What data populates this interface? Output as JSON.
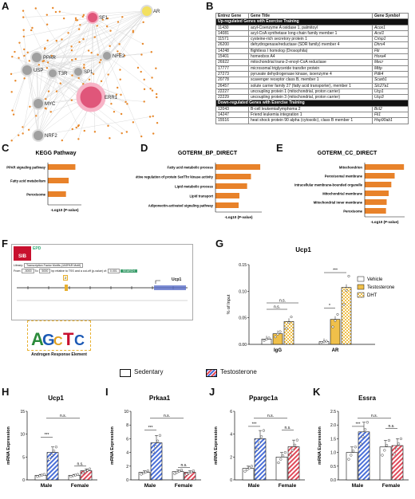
{
  "panels": {
    "A": "A",
    "B": "B",
    "C": "C",
    "D": "D",
    "E": "E",
    "F": "F",
    "G": "G",
    "H": "H",
    "I": "I",
    "J": "J",
    "K": "K"
  },
  "network": {
    "nodes": [
      {
        "label": "SF1",
        "color": "#e0567a"
      },
      {
        "label": "AR",
        "color": "#f3e060"
      },
      {
        "label": "PPAR",
        "color": "#a0a0a0"
      },
      {
        "label": "NFE2",
        "color": "#a0a0a0"
      },
      {
        "label": "USP",
        "color": "#a0a0a0"
      },
      {
        "label": "T3R",
        "color": "#a0a0a0"
      },
      {
        "label": "SP1",
        "color": "#a0a0a0"
      },
      {
        "label": "MYC",
        "color": "#a0a0a0"
      },
      {
        "label": "ERR1",
        "color": "#e0567a"
      },
      {
        "label": "NRF2",
        "color": "#a0a0a0"
      }
    ]
  },
  "gene_table": {
    "headers": [
      "Entrez Gene",
      "Gene Title",
      "Gene Symbol"
    ],
    "up_title": "Up-regulated Genes with Exercise Training",
    "up_rows": [
      [
        "11430",
        "acyl-Coenzyme A oxidase 1, palmitoyl",
        "Acox1"
      ],
      [
        "14081",
        "acyl-CoA synthetase long-chain family member 1",
        "Acsl1"
      ],
      [
        "11571",
        "cysteine-rich secretory protein 1",
        "Crisp1"
      ],
      [
        "26200",
        "dehydrogenase/reductase (SDR family) member 4",
        "Dhrs4"
      ],
      [
        "14248",
        "flightless I homolog (Drosophila)",
        "Flii"
      ],
      [
        "15401",
        "homeobox A4",
        "Hoxa4"
      ],
      [
        "26922",
        "mitochondrial trans-2-enoyl-CoA reductase",
        "Mecr"
      ],
      [
        "17777",
        "microsomal triglyceride transfer protein",
        "Mttp"
      ],
      [
        "27273",
        "pyruvate dehydrogenase kinase, isoenzyme 4",
        "Pdk4"
      ],
      [
        "20778",
        "scavenger receptor class B, member 1",
        "Scarb1"
      ],
      [
        "26457",
        "solute carrier family 27 (fatty acid transporter), member 1",
        "Slc27a1"
      ],
      [
        "22227",
        "uncoupling protein 1 (mitochondrial, proton carrier)",
        "Ucp1"
      ],
      [
        "22229",
        "uncoupling protein 3 (mitochondrial, proton carrier)",
        "Ucp3"
      ]
    ],
    "down_title": "Down-regulated Genes with Exercise Training",
    "down_rows": [
      [
        "12043",
        "B-cell leukemia/lymphoma 2",
        "Bcl2"
      ],
      [
        "14247",
        "Friend leukemia integration 1",
        "Fli1"
      ],
      [
        "15516",
        "heat shock protein 90 alpha (cytosolic), class B member 1",
        "Hsp90ab1"
      ]
    ]
  },
  "chart_data": [
    {
      "panel": "C",
      "type": "bar",
      "orientation": "horizontal",
      "title": "KEGG Pathway",
      "categories": [
        "PPAR signaling pathway",
        "Fatty acid metabolism",
        "Peroxisome"
      ],
      "values": [
        4.1,
        3.1,
        2.7
      ],
      "xlabel": "-Log10 (P-value)",
      "xlim": [
        0,
        5
      ],
      "color": "#e8822a"
    },
    {
      "panel": "D",
      "type": "bar",
      "orientation": "horizontal",
      "title": "GOTERM_BP_DIRECT",
      "categories": [
        "Fatty acid metabolic process",
        "Positive regulation of protein Ser/Thr kinase activity",
        "Lipid metabolic process",
        "Lipid transport",
        "Adiponectin-activated signaling pathway"
      ],
      "values": [
        5.8,
        4.6,
        4.1,
        3.1,
        3.0
      ],
      "xlabel": "-Log10 (P-value)",
      "xlim": [
        0,
        6
      ],
      "color": "#e8822a"
    },
    {
      "panel": "E",
      "type": "bar",
      "orientation": "horizontal",
      "title": "GOTERM_CC_DIRECT",
      "categories": [
        "Mitochondrion",
        "Peroxisomal membrane",
        "Intracellular membrane-bounded organelle",
        "Mitochondrial membrane",
        "Mitochondrial inner membrane",
        "Peroxisome"
      ],
      "values": [
        5.9,
        4.5,
        4.0,
        3.6,
        3.3,
        3.2
      ],
      "xlabel": "-Log10 (P-value)",
      "xlim": [
        0,
        6
      ],
      "color": "#e8822a"
    },
    {
      "panel": "G",
      "type": "bar",
      "title": "Ucp1",
      "ylabel": "% of Input",
      "ylim": [
        0,
        0.15
      ],
      "yticks": [
        "0.00",
        "0.05",
        "0.10",
        "0.15"
      ],
      "categories": [
        "IgG",
        "AR"
      ],
      "series": [
        {
          "name": "Vehicle",
          "values": [
            0.01,
            0.005
          ],
          "color": "#ffffff"
        },
        {
          "name": "Testosterone",
          "values": [
            0.02,
            0.047
          ],
          "color": "#f0c04a"
        },
        {
          "name": "DHT",
          "values": [
            0.043,
            0.107
          ],
          "color": "#f0c04a"
        }
      ],
      "annotations": [
        "n.s.",
        "n.s.",
        "*",
        "***"
      ]
    },
    {
      "panel": "H",
      "type": "bar",
      "title": "Ucp1",
      "ylabel": "mRNA Expression",
      "ylim": [
        0,
        15
      ],
      "yticks": [
        "0",
        "5",
        "10",
        "15"
      ],
      "categories": [
        "Male",
        "Female"
      ],
      "series": [
        {
          "name": "Sedentary",
          "values": [
            1.0,
            1.0
          ]
        },
        {
          "name": "Testosterone",
          "values": [
            6.0,
            2.0
          ]
        }
      ],
      "annotations": [
        "***",
        "n.s.",
        "n.s."
      ]
    },
    {
      "panel": "I",
      "type": "bar",
      "title": "Prkaa1",
      "ylabel": "mRNA Expression",
      "ylim": [
        0,
        10
      ],
      "yticks": [
        "0",
        "2",
        "4",
        "6",
        "8",
        "10"
      ],
      "categories": [
        "Male",
        "Female"
      ],
      "series": [
        {
          "name": "Sedentary",
          "values": [
            1.1,
            1.2
          ]
        },
        {
          "name": "Testosterone",
          "values": [
            5.4,
            1.1
          ]
        }
      ],
      "annotations": [
        "***",
        "n.s.",
        "n.s."
      ]
    },
    {
      "panel": "J",
      "type": "bar",
      "title": "Ppargc1a",
      "ylabel": "mRNA Expression",
      "ylim": [
        0,
        6
      ],
      "yticks": [
        "0",
        "2",
        "4",
        "6"
      ],
      "categories": [
        "Male",
        "Female"
      ],
      "series": [
        {
          "name": "Sedentary",
          "values": [
            1.0,
            2.0
          ]
        },
        {
          "name": "Testosterone",
          "values": [
            3.6,
            2.9
          ]
        }
      ],
      "annotations": [
        "***",
        "n.s.",
        "n.s."
      ]
    },
    {
      "panel": "K",
      "type": "bar",
      "title": "Essra",
      "ylabel": "mRNA Expression",
      "ylim": [
        0,
        2.5
      ],
      "yticks": [
        "0.0",
        "0.5",
        "1.0",
        "1.5",
        "2.0",
        "2.5"
      ],
      "categories": [
        "Male",
        "Female"
      ],
      "series": [
        {
          "name": "Sedentary",
          "values": [
            1.0,
            1.2
          ]
        },
        {
          "name": "Testosterone",
          "values": [
            1.75,
            1.25
          ]
        }
      ],
      "annotations": [
        "***",
        "n.s.",
        "n.s."
      ]
    }
  ],
  "legend_bottom": {
    "sedentary": "Sedentary",
    "testosterone": "Testosterone"
  },
  "panel_f": {
    "logo": "SIB",
    "logo2": "EPD",
    "library_label": "Library:",
    "library_value": "Transcription Factor Motifs (JASPAR Motif)",
    "from_label": "From:",
    "from_value": "-5000",
    "to_label": "To:",
    "to_value": "5000",
    "tss_text": "bp relative to TSS and a cut-off (p-value) of:",
    "pval": "0.001",
    "search": "SEARCH",
    "gene": "Ucp1",
    "marker": "2",
    "caption": "Androgen Response Element"
  }
}
